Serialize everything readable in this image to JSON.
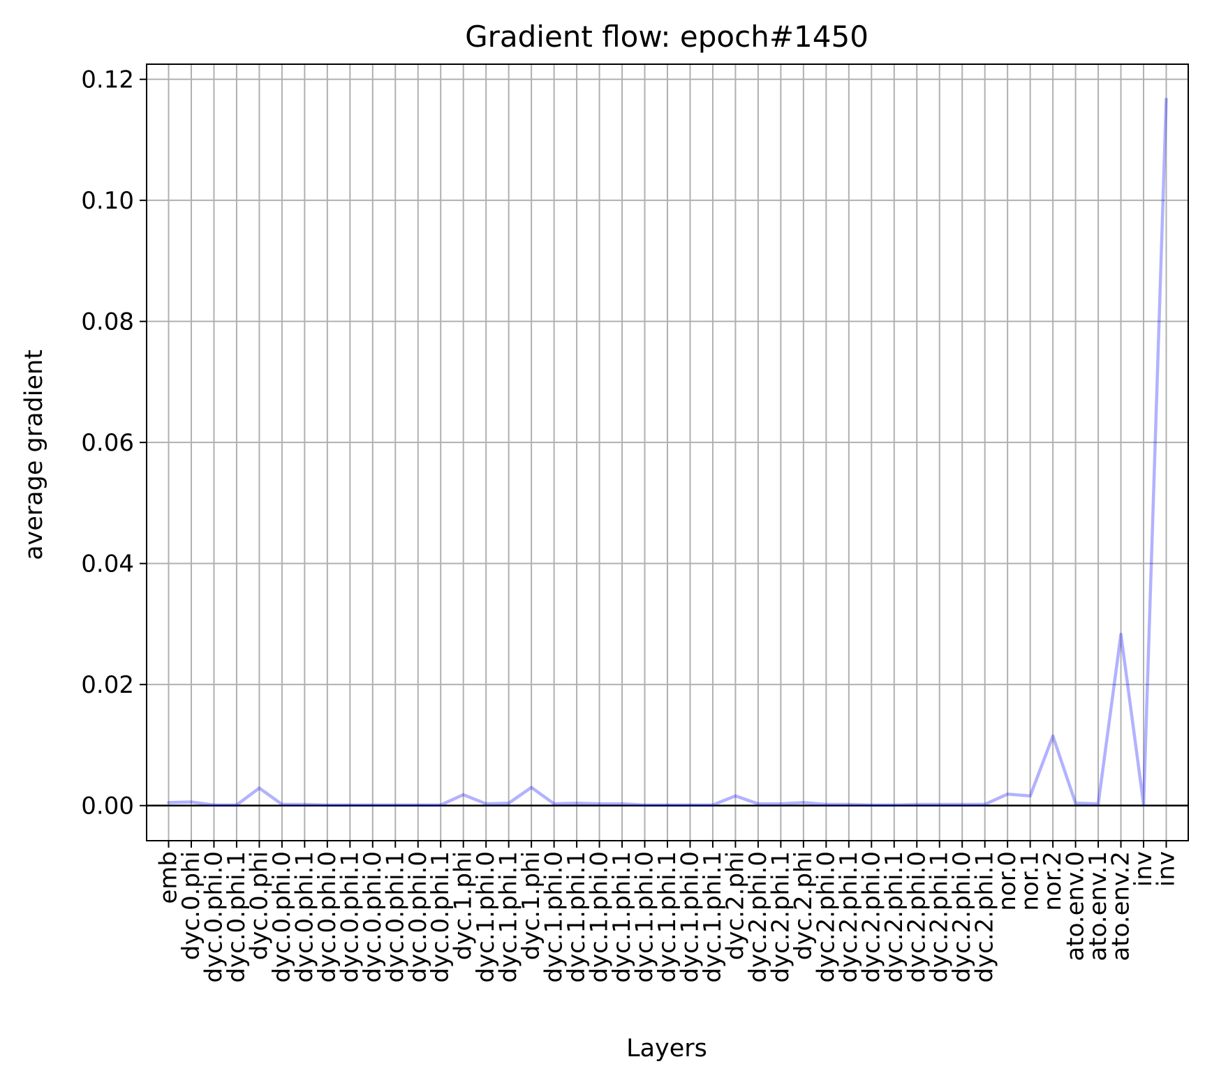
{
  "chart_data": {
    "type": "line",
    "title": "Gradient flow: epoch#1450",
    "xlabel": "Layers",
    "ylabel": "average gradient",
    "ylim": [
      -0.0058,
      0.1225
    ],
    "yticks": [
      0.0,
      0.02,
      0.04,
      0.06,
      0.08,
      0.1,
      0.12
    ],
    "ytick_labels": [
      "0.00",
      "0.02",
      "0.04",
      "0.06",
      "0.08",
      "0.10",
      "0.12"
    ],
    "grid": true,
    "categories": [
      "emb",
      "dyc.0.phi",
      "dyc.0.phi.0",
      "dyc.0.phi.1",
      "dyc.0.phi",
      "dyc.0.phi.0",
      "dyc.0.phi.1",
      "dyc.0.phi.0",
      "dyc.0.phi.1",
      "dyc.0.phi.0",
      "dyc.0.phi.1",
      "dyc.0.phi.0",
      "dyc.0.phi.1",
      "dyc.1.phi",
      "dyc.1.phi.0",
      "dyc.1.phi.1",
      "dyc.1.phi",
      "dyc.1.phi.0",
      "dyc.1.phi.1",
      "dyc.1.phi.0",
      "dyc.1.phi.1",
      "dyc.1.phi.0",
      "dyc.1.phi.1",
      "dyc.1.phi.0",
      "dyc.1.phi.1",
      "dyc.2.phi",
      "dyc.2.phi.0",
      "dyc.2.phi.1",
      "dyc.2.phi",
      "dyc.2.phi.0",
      "dyc.2.phi.1",
      "dyc.2.phi.0",
      "dyc.2.phi.1",
      "dyc.2.phi.0",
      "dyc.2.phi.1",
      "dyc.2.phi.0",
      "dyc.2.phi.1",
      "nor.0",
      "nor.1",
      "nor.2",
      "ato.env.0",
      "ato.env.1",
      "ato.env.2",
      "inv",
      "inv"
    ],
    "series": [
      {
        "name": "average gradient",
        "color": "#0000ff",
        "alpha": 0.3,
        "values": [
          0.0005,
          0.0006,
          0.0001,
          0.0001,
          0.0029,
          0.0002,
          0.0002,
          0.0001,
          0.0001,
          0.0001,
          0.0001,
          0.0001,
          0.0001,
          0.0018,
          0.0003,
          0.0004,
          0.003,
          0.0003,
          0.0004,
          0.0003,
          0.0003,
          0.0001,
          0.0001,
          0.0001,
          0.0001,
          0.0016,
          0.0003,
          0.0003,
          0.0005,
          0.0002,
          0.0002,
          0.0001,
          0.0001,
          0.0002,
          0.0002,
          0.0002,
          0.0002,
          0.0019,
          0.0016,
          0.0115,
          0.0004,
          0.0003,
          0.0283,
          0.0002,
          0.1167
        ]
      }
    ],
    "hline": 0.0,
    "colors": {
      "grid": "#b0b0b0",
      "axis": "#000000",
      "line": "#0000ff",
      "background": "#ffffff"
    }
  }
}
